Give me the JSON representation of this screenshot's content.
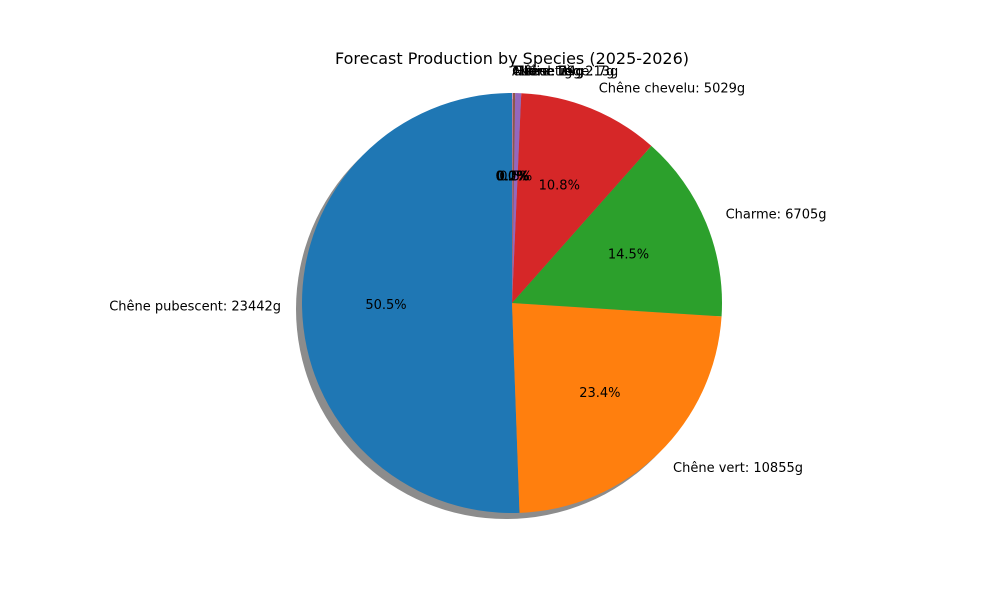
{
  "chart_data": {
    "type": "pie",
    "title": "Forecast Production by Species (2025-2026)",
    "unit": "g",
    "start_angle_deg": 90,
    "direction": "counterclockwise",
    "shadow": true,
    "slices": [
      {
        "label": "Chêne pubescent: 23442g",
        "value": 23442,
        "pct_label": "50.5%",
        "color": "#1f77b4"
      },
      {
        "label": "Chêne vert: 10855g",
        "value": 10855,
        "pct_label": "23.4%",
        "color": "#ff7f0e"
      },
      {
        "label": "Charme: 6705g",
        "value": 6705,
        "pct_label": "14.5%",
        "color": "#2ca02c"
      },
      {
        "label": "Chêne chevelu: 5029g",
        "value": 5029,
        "pct_label": "10.8%",
        "color": "#d62728"
      },
      {
        "label": "Noisetier: 213g",
        "value": 213,
        "pct_label": "0.5%",
        "color": "#9467bd"
      },
      {
        "label": "Hêtre: 79g",
        "value": 79,
        "pct_label": "0.2%",
        "color": "#8c564b"
      },
      {
        "label": "Tilleul: 24g",
        "value": 24,
        "pct_label": "0.1%",
        "color": "#e377c2"
      },
      {
        "label": "Chêne liège: 7g",
        "value": 7,
        "pct_label": "0.0%",
        "color": "#7f7f7f"
      },
      {
        "label": "Autre: 1g",
        "value": 1,
        "pct_label": "0.0%",
        "color": "#bcbd22"
      }
    ]
  }
}
